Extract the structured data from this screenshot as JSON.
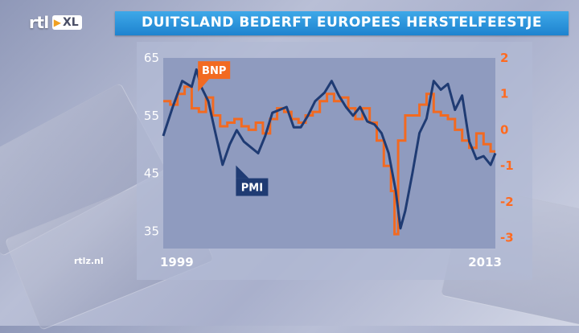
{
  "header": {
    "title": "DUITSLAND BEDERFT EUROPEES HERSTELFEESTJE"
  },
  "logo": {
    "rtl": "rtl",
    "xl": "XL"
  },
  "footer": {
    "website": "rtlz.nl"
  },
  "colors": {
    "pmi": "#1f3b73",
    "bnp": "#f26a21",
    "title_bar": "#2a93db",
    "plot_bg": "#8f9bbf"
  },
  "chart_data": {
    "type": "line",
    "title": "",
    "x_range": [
      1999,
      2013
    ],
    "x_tick_labels": [
      "1999",
      "2013"
    ],
    "y_left": {
      "ticks": [
        35,
        45,
        55,
        65
      ],
      "range": [
        32,
        65
      ]
    },
    "y_right": {
      "ticks": [
        -3,
        -2,
        -1,
        0,
        1,
        2
      ],
      "range": [
        -3.3,
        2
      ]
    },
    "grid": false,
    "series": [
      {
        "name": "PMI",
        "axis": "left",
        "shape": "line",
        "x": [
          1999.0,
          1999.4,
          1999.8,
          2000.2,
          2000.4,
          2000.6,
          2000.9,
          2001.2,
          2001.5,
          2001.8,
          2002.1,
          2002.4,
          2002.7,
          2003.0,
          2003.3,
          2003.6,
          2003.9,
          2004.2,
          2004.5,
          2004.8,
          2005.1,
          2005.4,
          2005.8,
          2006.1,
          2006.4,
          2006.7,
          2007.0,
          2007.3,
          2007.6,
          2007.9,
          2008.2,
          2008.5,
          2008.8,
          2009.0,
          2009.2,
          2009.5,
          2009.8,
          2010.1,
          2010.4,
          2010.7,
          2011.0,
          2011.3,
          2011.6,
          2011.9,
          2012.2,
          2012.5,
          2012.8,
          2013.0
        ],
        "values": [
          51.5,
          56.5,
          61.0,
          60.0,
          63.0,
          60.0,
          57.5,
          52.0,
          46.5,
          50.0,
          52.5,
          50.5,
          49.5,
          48.5,
          51.5,
          55.5,
          56.0,
          56.5,
          53.0,
          53.0,
          55.0,
          57.5,
          59.0,
          61.0,
          58.5,
          56.5,
          55.0,
          56.5,
          54.0,
          53.5,
          52.0,
          48.5,
          42.0,
          35.5,
          38.5,
          45.0,
          52.0,
          54.5,
          61.0,
          59.5,
          60.5,
          56.0,
          58.5,
          50.5,
          47.5,
          48.0,
          46.5,
          48.5
        ]
      },
      {
        "name": "BNP",
        "axis": "right",
        "shape": "step",
        "x": [
          1999.0,
          1999.3,
          1999.6,
          1999.9,
          2000.2,
          2000.5,
          2000.8,
          2001.1,
          2001.4,
          2001.7,
          2002.0,
          2002.3,
          2002.6,
          2002.9,
          2003.2,
          2003.5,
          2003.8,
          2004.1,
          2004.4,
          2004.7,
          2005.0,
          2005.3,
          2005.6,
          2005.9,
          2006.2,
          2006.5,
          2006.8,
          2007.1,
          2007.4,
          2007.7,
          2008.0,
          2008.3,
          2008.6,
          2008.75,
          2008.9,
          2009.2,
          2009.5,
          2009.8,
          2010.1,
          2010.4,
          2010.7,
          2011.0,
          2011.3,
          2011.6,
          2011.9,
          2012.2,
          2012.5,
          2012.8
        ],
        "values": [
          0.8,
          0.7,
          1.0,
          1.2,
          0.6,
          0.5,
          0.9,
          0.4,
          0.1,
          0.2,
          0.3,
          0.1,
          0.0,
          0.2,
          -0.1,
          0.3,
          0.6,
          0.5,
          0.3,
          0.2,
          0.4,
          0.5,
          0.8,
          1.0,
          0.8,
          0.9,
          0.6,
          0.3,
          0.6,
          0.2,
          -0.3,
          -1.0,
          -1.7,
          -2.9,
          -0.3,
          0.4,
          0.4,
          0.7,
          1.0,
          0.5,
          0.4,
          0.3,
          0.0,
          -0.3,
          -0.5,
          -0.1,
          -0.4,
          -0.6
        ]
      }
    ],
    "annotations": [
      {
        "text": "BNP",
        "series": "BNP"
      },
      {
        "text": "PMI",
        "series": "PMI"
      }
    ]
  }
}
